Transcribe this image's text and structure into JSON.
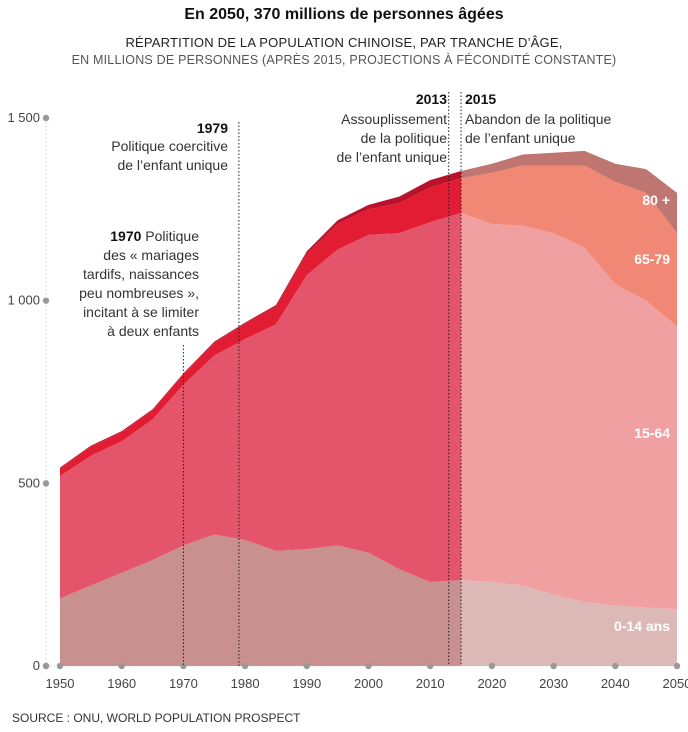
{
  "chart_data": {
    "type": "area",
    "title": "En 2050, 370 millions de personnes âgées",
    "subtitle": "RÉPARTITION DE LA POPULATION CHINOISE, PAR TRANCHE D’ÂGE,",
    "subtitle2": "EN MILLIONS DE PERSONNES (APRÈS 2015, PROJECTIONS À FÉCONDITÉ CONSTANTE)",
    "source": "SOURCE : ONU, WORLD POPULATION PROSPECT",
    "stacked": true,
    "x": [
      1950,
      1955,
      1960,
      1965,
      1970,
      1975,
      1980,
      1985,
      1990,
      1995,
      2000,
      2005,
      2010,
      2015,
      2020,
      2025,
      2030,
      2035,
      2040,
      2045,
      2050
    ],
    "xticks": [
      "1950",
      "1960",
      "1970",
      "1980",
      "1990",
      "2000",
      "2010",
      "2020",
      "2030",
      "2040",
      "2050"
    ],
    "xtick_values": [
      1950,
      1960,
      1970,
      1980,
      1990,
      2000,
      2010,
      2020,
      2030,
      2040,
      2050
    ],
    "yticks": [
      "0",
      "500",
      "1 000",
      "1 500"
    ],
    "ytick_values": [
      0,
      500,
      1000,
      1500
    ],
    "ylim": [
      0,
      1500
    ],
    "projection_start": 2015,
    "series": [
      {
        "name": "0-14 ans",
        "color_hist": "#c8908f",
        "color_proj": "#dcb9b6",
        "values": [
          185,
          220,
          255,
          290,
          330,
          360,
          345,
          315,
          320,
          330,
          310,
          265,
          230,
          235,
          230,
          220,
          195,
          175,
          165,
          160,
          155
        ]
      },
      {
        "name": "15-64",
        "color_hist": "#e4546a",
        "color_proj": "#f1a0a2",
        "values": [
          335,
          355,
          360,
          385,
          440,
          490,
          550,
          620,
          750,
          810,
          870,
          920,
          985,
          1005,
          980,
          985,
          990,
          970,
          880,
          840,
          775
        ]
      },
      {
        "name": "65-79",
        "color_hist": "#e21d33",
        "color_proj": "#f18875",
        "values": [
          20,
          25,
          25,
          25,
          28,
          35,
          42,
          48,
          58,
          70,
          70,
          82,
          95,
          95,
          140,
          165,
          185,
          225,
          280,
          295,
          255
        ]
      },
      {
        "name": "80 +",
        "color_hist": "#b8132b",
        "color_proj": "#c07670",
        "values": [
          3,
          3,
          3,
          3,
          3,
          3,
          3,
          5,
          7,
          10,
          12,
          18,
          20,
          20,
          25,
          30,
          35,
          40,
          50,
          65,
          110
        ]
      }
    ],
    "annotations": [
      {
        "x": 1970,
        "year": "1970",
        "text": [
          " Politique",
          "des « mariages",
          "tardifs, naissances",
          "peu nombreuses »,",
          "incitant à se limiter",
          "à deux enfants"
        ]
      },
      {
        "x": 1979,
        "year": "1979",
        "text": [
          "Politique coercitive",
          "de l’enfant unique"
        ]
      },
      {
        "x": 2013,
        "year": "2013",
        "text": [
          "Assouplissement",
          "de la politique",
          "de l’enfant unique"
        ]
      },
      {
        "x": 2015,
        "year": "2015",
        "text": [
          "Abandon de la politique",
          "de l’enfant unique"
        ]
      }
    ]
  }
}
